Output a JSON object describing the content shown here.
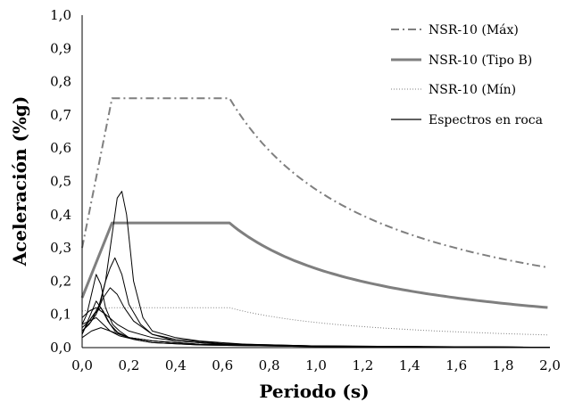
{
  "chart_data": {
    "type": "line",
    "xlabel": "Periodo (s)",
    "ylabel": "Aceleración (%g)",
    "xlim": [
      0,
      2
    ],
    "ylim": [
      0,
      1
    ],
    "x_ticks": [
      "0,0",
      "0,2",
      "0,4",
      "0,6",
      "0,8",
      "1,0",
      "1,2",
      "1,4",
      "1,6",
      "1,8",
      "2,0"
    ],
    "y_ticks": [
      "0,0",
      "0,1",
      "0,2",
      "0,3",
      "0,4",
      "0,5",
      "0,6",
      "0,7",
      "0,8",
      "0,9",
      "1,0"
    ],
    "grid": false,
    "legend_position": "top-right",
    "legend": [
      {
        "label": "NSR-10 (Máx)",
        "style": "dashdot",
        "color": "#7f7f7f"
      },
      {
        "label": "NSR-10 (Tipo B)",
        "style": "solid-thick",
        "color": "#7f7f7f"
      },
      {
        "label": "NSR-10 (Mín)",
        "style": "dotted",
        "color": "#7f7f7f"
      },
      {
        "label": "Espectros en roca",
        "style": "solid-thin",
        "color": "#000000"
      }
    ],
    "series": [
      {
        "name": "NSR-10 (Máx)",
        "Sa_peak": 0.75,
        "Sa_0": 0.3,
        "T0": 0.128,
        "Tc": 0.63,
        "Sa_at_2s": 0.24
      },
      {
        "name": "NSR-10 (Tipo B)",
        "Sa_peak": 0.375,
        "Sa_0": 0.15,
        "T0": 0.128,
        "Tc": 0.63,
        "Sa_at_2s": 0.12
      },
      {
        "name": "NSR-10 (Mín)",
        "Sa_peak": 0.12,
        "Sa_0": 0.11,
        "T0": 0.128,
        "Tc": 0.63,
        "Sa_at_2s": 0.038
      },
      {
        "name": "Espectros en roca",
        "curves": [
          {
            "x": [
              0,
              0.03,
              0.07,
              0.1,
              0.13,
              0.15,
              0.17,
              0.19,
              0.22,
              0.26,
              0.3,
              0.4,
              0.5,
              0.7,
              1.0,
              1.5,
              2.0
            ],
            "y": [
              0.07,
              0.08,
              0.12,
              0.2,
              0.35,
              0.45,
              0.47,
              0.4,
              0.2,
              0.09,
              0.05,
              0.03,
              0.02,
              0.01,
              0.005,
              0.002,
              0.001
            ]
          },
          {
            "x": [
              0,
              0.04,
              0.08,
              0.1,
              0.12,
              0.14,
              0.17,
              0.2,
              0.25,
              0.3,
              0.4,
              0.6,
              1.0,
              2.0
            ],
            "y": [
              0.05,
              0.08,
              0.14,
              0.2,
              0.24,
              0.27,
              0.22,
              0.13,
              0.07,
              0.04,
              0.02,
              0.01,
              0.005,
              0.001
            ]
          },
          {
            "x": [
              0,
              0.02,
              0.04,
              0.06,
              0.08,
              0.1,
              0.13,
              0.16,
              0.2,
              0.3,
              0.5,
              1.0,
              2.0
            ],
            "y": [
              0.07,
              0.1,
              0.16,
              0.22,
              0.19,
              0.12,
              0.07,
              0.05,
              0.03,
              0.02,
              0.01,
              0.004,
              0.001
            ]
          },
          {
            "x": [
              0,
              0.03,
              0.06,
              0.09,
              0.12,
              0.15,
              0.18,
              0.22,
              0.3,
              0.4,
              0.6,
              1.0,
              2.0
            ],
            "y": [
              0.05,
              0.07,
              0.1,
              0.15,
              0.18,
              0.16,
              0.12,
              0.08,
              0.04,
              0.025,
              0.012,
              0.005,
              0.001
            ]
          },
          {
            "x": [
              0,
              0.02,
              0.05,
              0.08,
              0.11,
              0.14,
              0.2,
              0.3,
              0.5,
              1.0,
              2.0
            ],
            "y": [
              0.04,
              0.07,
              0.1,
              0.12,
              0.08,
              0.05,
              0.03,
              0.02,
              0.01,
              0.004,
              0.001
            ]
          },
          {
            "x": [
              0,
              0.03,
              0.06,
              0.1,
              0.15,
              0.2,
              0.3,
              0.4,
              0.6,
              1.0,
              2.0
            ],
            "y": [
              0.09,
              0.11,
              0.12,
              0.1,
              0.07,
              0.05,
              0.03,
              0.02,
              0.01,
              0.004,
              0.001
            ]
          },
          {
            "x": [
              0,
              0.03,
              0.06,
              0.09,
              0.12,
              0.16,
              0.22,
              0.3,
              0.5,
              1.0,
              2.0
            ],
            "y": [
              0.04,
              0.09,
              0.14,
              0.11,
              0.07,
              0.04,
              0.025,
              0.015,
              0.008,
              0.003,
              0.001
            ]
          },
          {
            "x": [
              0,
              0.03,
              0.06,
              0.09,
              0.12,
              0.16,
              0.22,
              0.3,
              0.5,
              1.0,
              2.0
            ],
            "y": [
              0.06,
              0.08,
              0.09,
              0.07,
              0.05,
              0.035,
              0.025,
              0.015,
              0.008,
              0.003,
              0.001
            ]
          },
          {
            "x": [
              0,
              0.04,
              0.08,
              0.12,
              0.16,
              0.2,
              0.3,
              0.5,
              1.0,
              2.0
            ],
            "y": [
              0.03,
              0.05,
              0.06,
              0.05,
              0.04,
              0.03,
              0.02,
              0.01,
              0.004,
              0.001
            ]
          }
        ]
      }
    ]
  }
}
